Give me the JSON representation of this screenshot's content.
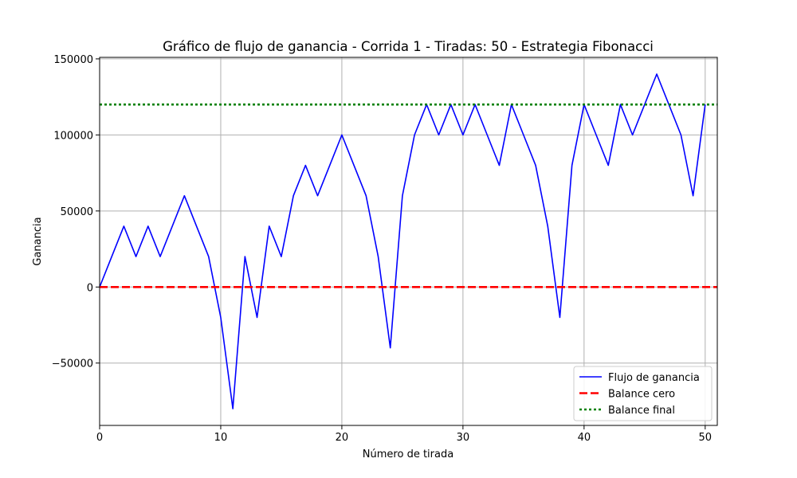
{
  "chart_data": {
    "type": "line",
    "title": "Gráfico de flujo de ganancia - Corrida 1 - Tiradas: 50 - Estrategia Fibonacci",
    "xlabel": "Número de tirada",
    "ylabel": "Ganancia",
    "xlim": [
      0,
      51
    ],
    "ylim": [
      -91000,
      151000
    ],
    "x_ticks": [
      0,
      10,
      20,
      30,
      40,
      50
    ],
    "x_tick_labels": [
      "0",
      "10",
      "20",
      "30",
      "40",
      "50"
    ],
    "y_ticks": [
      -50000,
      0,
      50000,
      100000,
      150000
    ],
    "y_tick_labels": [
      "−50000",
      "0",
      "50000",
      "100000",
      "150000"
    ],
    "grid": true,
    "legend_position": "lower-right",
    "series": [
      {
        "name": "Flujo de ganancia",
        "color": "#0000ff",
        "style": "solid",
        "x": [
          0,
          1,
          2,
          3,
          4,
          5,
          6,
          7,
          8,
          9,
          10,
          11,
          12,
          13,
          14,
          15,
          16,
          17,
          18,
          19,
          20,
          21,
          22,
          23,
          24,
          25,
          26,
          27,
          28,
          29,
          30,
          31,
          32,
          33,
          34,
          35,
          36,
          37,
          38,
          39,
          40,
          41,
          42,
          43,
          44,
          45,
          46,
          47,
          48,
          49,
          50
        ],
        "y": [
          0,
          20000,
          40000,
          20000,
          40000,
          20000,
          40000,
          60000,
          40000,
          20000,
          -20000,
          -80000,
          20000,
          -20000,
          40000,
          20000,
          60000,
          80000,
          60000,
          80000,
          100000,
          80000,
          60000,
          20000,
          -40000,
          60000,
          100000,
          120000,
          100000,
          120000,
          100000,
          120000,
          100000,
          80000,
          120000,
          100000,
          80000,
          40000,
          -20000,
          80000,
          120000,
          100000,
          80000,
          120000,
          100000,
          120000,
          140000,
          120000,
          100000,
          60000,
          120000
        ]
      },
      {
        "name": "Balance cero",
        "color": "#ff0000",
        "style": "dashed",
        "y_constant": 0
      },
      {
        "name": "Balance final",
        "color": "#008000",
        "style": "dotted",
        "y_constant": 120000
      }
    ]
  }
}
